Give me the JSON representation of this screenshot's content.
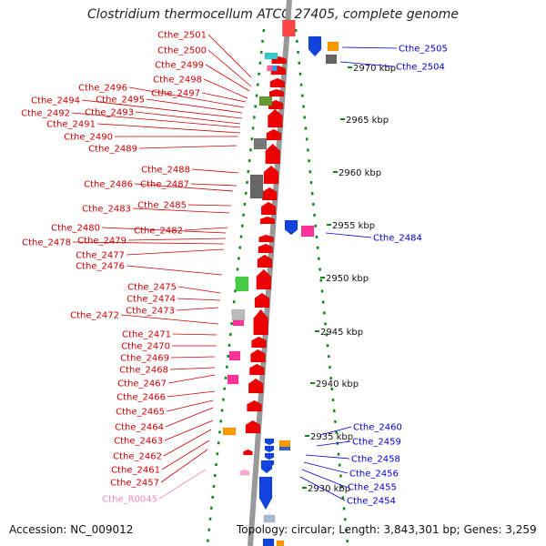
{
  "title": "Clostridium thermocellum ATCC 27405, complete genome",
  "footer": {
    "accession": "Accession: NC_009012",
    "topology": "Topology: circular; Length: 3,843,301 bp; Genes: 3,259"
  },
  "colors": {
    "left_label": "#cc0000",
    "right_label": "#0000cc",
    "rna_label": "#ee88bb",
    "backbone": "#999999",
    "ruler": "#118811"
  },
  "ticks": [
    "2970 kbp",
    "2965 kbp",
    "2960 kbp",
    "2955 kbp",
    "2950 kbp",
    "2945 kbp",
    "2940 kbp",
    "2935 kbp",
    "2930 kbp"
  ],
  "left_labels": [
    "Cthe_2501",
    "Cthe_2500",
    "Cthe_2499",
    "Cthe_2498",
    "Cthe_2497",
    "Cthe_2496",
    "Cthe_2495",
    "Cthe_2494",
    "Cthe_2493",
    "Cthe_2492",
    "Cthe_2491",
    "Cthe_2490",
    "Cthe_2489",
    "Cthe_2488",
    "Cthe_2487",
    "Cthe_2486",
    "Cthe_2485",
    "Cthe_2483",
    "Cthe_2482",
    "Cthe_2480",
    "Cthe_2479",
    "Cthe_2478",
    "Cthe_2477",
    "Cthe_2476",
    "Cthe_2475",
    "Cthe_2474",
    "Cthe_2473",
    "Cthe_2472",
    "Cthe_2471",
    "Cthe_2470",
    "Cthe_2469",
    "Cthe_2468",
    "Cthe_2467",
    "Cthe_2466",
    "Cthe_2465",
    "Cthe_2464",
    "Cthe_2463",
    "Cthe_2462",
    "Cthe_2461",
    "Cthe_2457",
    "Cthe_R0045"
  ],
  "right_labels": [
    "Cthe_2505",
    "Cthe_2504",
    "Cthe_2484",
    "Cthe_2460",
    "Cthe_2459",
    "Cthe_2458",
    "Cthe_2456",
    "Cthe_2455",
    "Cthe_2454"
  ]
}
